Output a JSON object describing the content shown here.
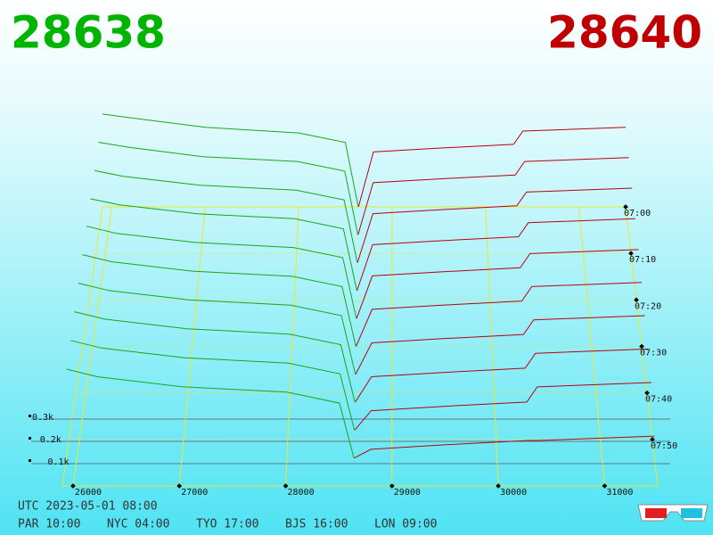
{
  "header": {
    "bid": "28638",
    "ask": "28640"
  },
  "footer": {
    "utc": "UTC 2023-05-01 08:00",
    "cities": [
      "PAR 10:00",
      "NYC 04:00",
      "TYO 17:00",
      "BJS 16:00",
      "LON 09:00"
    ]
  },
  "chart_data": {
    "type": "depth3d",
    "bid_color": "#1aa51a",
    "ask_color": "#b80010",
    "header_bid_color": "#00b400",
    "header_ask_color": "#c00000",
    "grid_color": "#e8e830",
    "xlim": [
      25900,
      31500
    ],
    "xticks": [
      26000,
      27000,
      28000,
      29000,
      30000,
      31000
    ],
    "zlim": [
      0,
      60
    ],
    "zticks": [
      {
        "value": 0,
        "label": "07:00"
      },
      {
        "value": 10,
        "label": "07:10"
      },
      {
        "value": 20,
        "label": "07:20"
      },
      {
        "value": 30,
        "label": "07:30"
      },
      {
        "value": 40,
        "label": "07:40"
      },
      {
        "value": 50,
        "label": "07:50"
      }
    ],
    "yticks": [
      {
        "value": 100,
        "label": "0.1k"
      },
      {
        "value": 200,
        "label": "0.2k"
      },
      {
        "value": 300,
        "label": "0.3k"
      }
    ],
    "snapshot_times": [
      0,
      6,
      12,
      18,
      24,
      30,
      36,
      42,
      48,
      54
    ],
    "bid_prices": [
      25900,
      26200,
      27000,
      28000,
      28500,
      28638
    ],
    "ask_prices": [
      28640,
      28800,
      29500,
      30300,
      30400,
      31500
    ],
    "bid_snapshots": [
      [
        490,
        470,
        420,
        390,
        340,
        0
      ],
      [
        480,
        455,
        405,
        380,
        330,
        0
      ],
      [
        470,
        440,
        395,
        370,
        320,
        0
      ],
      [
        460,
        430,
        385,
        360,
        310,
        0
      ],
      [
        455,
        420,
        375,
        350,
        300,
        0
      ],
      [
        445,
        410,
        365,
        340,
        290,
        0
      ],
      [
        435,
        400,
        355,
        330,
        280,
        0
      ],
      [
        425,
        390,
        345,
        320,
        270,
        0
      ],
      [
        415,
        380,
        335,
        310,
        260,
        0
      ],
      [
        405,
        370,
        325,
        300,
        250,
        0
      ]
    ],
    "ask_snapshots": [
      [
        0,
        290,
        310,
        330,
        400,
        420
      ],
      [
        0,
        270,
        290,
        310,
        380,
        400
      ],
      [
        0,
        250,
        270,
        290,
        360,
        380
      ],
      [
        0,
        230,
        250,
        270,
        340,
        360
      ],
      [
        0,
        210,
        230,
        250,
        320,
        340
      ],
      [
        0,
        180,
        200,
        220,
        290,
        310
      ],
      [
        0,
        150,
        170,
        190,
        260,
        280
      ],
      [
        0,
        120,
        140,
        160,
        230,
        250
      ],
      [
        0,
        90,
        110,
        130,
        200,
        220
      ],
      [
        0,
        40,
        60,
        80,
        80,
        100
      ]
    ]
  }
}
